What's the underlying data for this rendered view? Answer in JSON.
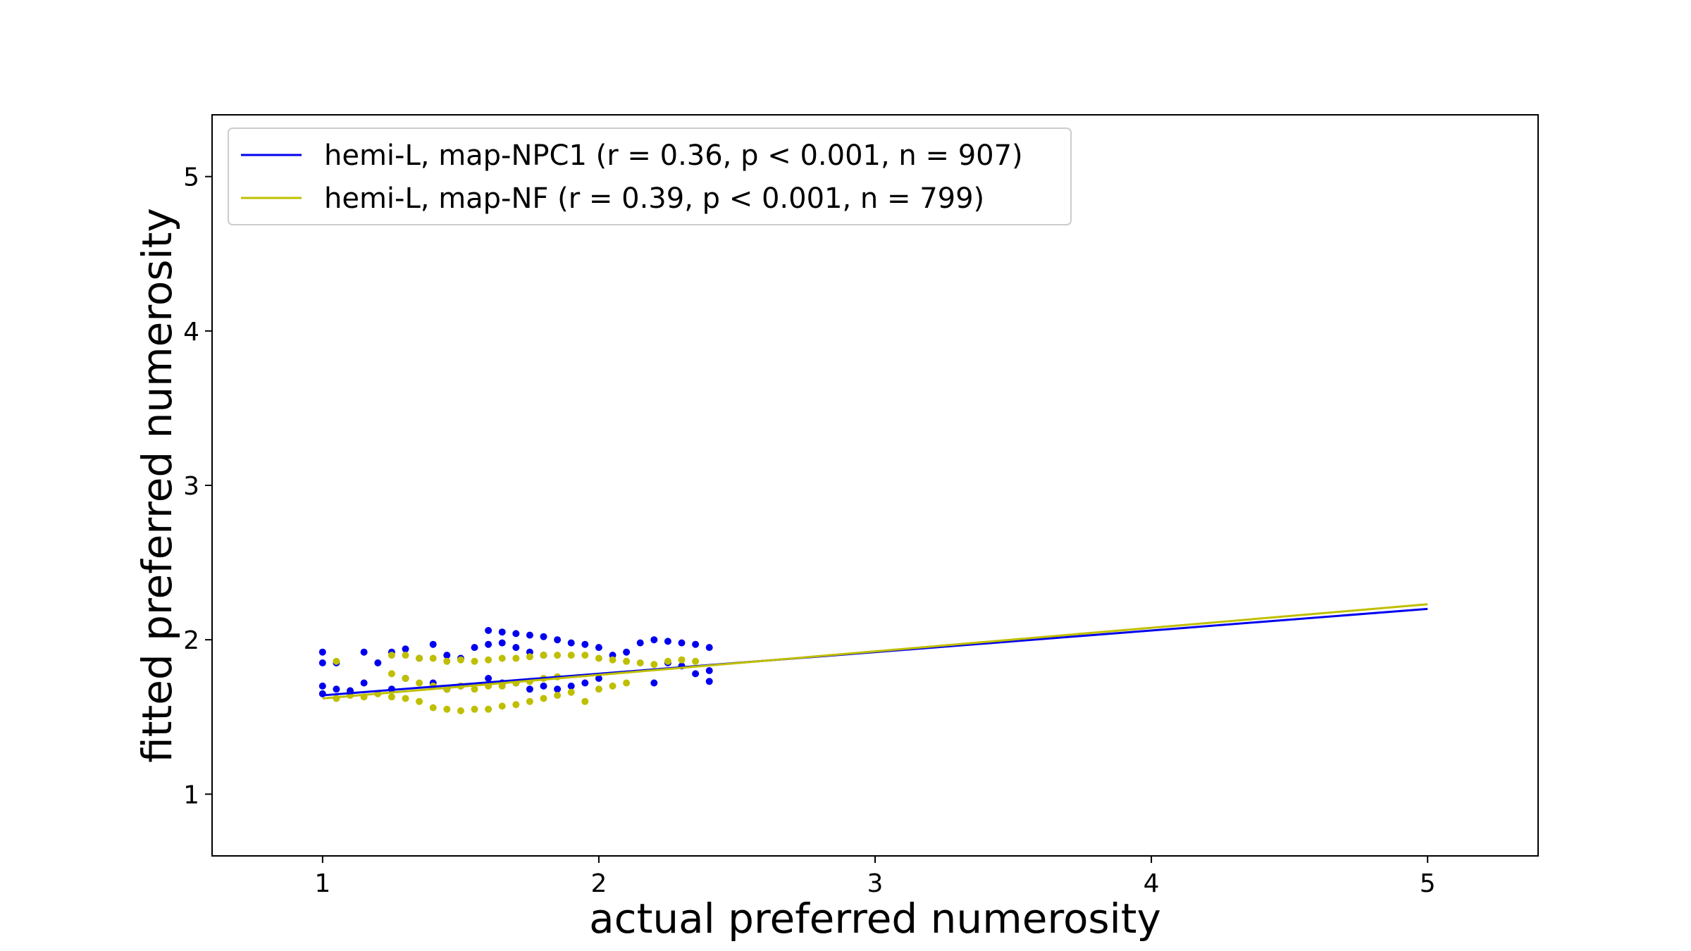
{
  "chart_data": {
    "type": "scatter",
    "title": "",
    "xlabel": "actual preferred numerosity",
    "ylabel": "fitted preferred numerosity",
    "xlim": [
      0.6,
      5.4
    ],
    "ylim": [
      0.6,
      5.4
    ],
    "xticks": [
      1,
      2,
      3,
      4,
      5
    ],
    "yticks": [
      1,
      2,
      3,
      4,
      5
    ],
    "xtick_labels": [
      "1",
      "2",
      "3",
      "4",
      "5"
    ],
    "ytick_labels": [
      "1",
      "2",
      "3",
      "4",
      "5"
    ],
    "grid": false,
    "legend_position": "top-left",
    "series": [
      {
        "name": "hemi-L, map-NPC1 (r = 0.36, p < 0.001, n = 907)",
        "color": "#0000ee",
        "fit_line": {
          "x": [
            1,
            5
          ],
          "y": [
            1.64,
            2.2
          ]
        },
        "x": [
          1.0,
          1.0,
          1.0,
          1.0,
          1.05,
          1.05,
          1.1,
          1.15,
          1.15,
          1.2,
          1.25,
          1.25,
          1.3,
          1.3,
          1.35,
          1.4,
          1.4,
          1.45,
          1.45,
          1.5,
          1.5,
          1.55,
          1.6,
          1.6,
          1.6,
          1.65,
          1.65,
          1.65,
          1.7,
          1.7,
          1.7,
          1.75,
          1.75,
          1.75,
          1.8,
          1.8,
          1.8,
          1.85,
          1.85,
          1.9,
          1.9,
          1.95,
          1.95,
          2.0,
          2.0,
          2.05,
          2.1,
          2.15,
          2.2,
          2.2,
          2.25,
          2.25,
          2.3,
          2.3,
          2.35,
          2.35,
          2.4,
          2.4,
          2.4
        ],
        "y": [
          1.92,
          1.85,
          1.7,
          1.65,
          1.85,
          1.68,
          1.67,
          1.92,
          1.72,
          1.85,
          1.92,
          1.68,
          1.94,
          1.75,
          1.88,
          1.97,
          1.72,
          1.9,
          1.68,
          1.88,
          1.7,
          1.95,
          2.06,
          1.97,
          1.75,
          2.05,
          1.98,
          1.72,
          2.04,
          1.95,
          1.72,
          2.03,
          1.92,
          1.68,
          2.02,
          1.9,
          1.7,
          2.0,
          1.68,
          1.98,
          1.7,
          1.97,
          1.72,
          1.95,
          1.75,
          1.9,
          1.92,
          1.98,
          2.0,
          1.72,
          1.99,
          1.85,
          1.98,
          1.83,
          1.97,
          1.78,
          1.95,
          1.8,
          1.73
        ]
      },
      {
        "name": "hemi-L, map-NF (r = 0.39, p < 0.001, n = 799)",
        "color": "#bfbf00",
        "fit_line": {
          "x": [
            1,
            5
          ],
          "y": [
            1.62,
            2.23
          ]
        },
        "x": [
          1.05,
          1.05,
          1.1,
          1.15,
          1.2,
          1.25,
          1.25,
          1.25,
          1.3,
          1.3,
          1.3,
          1.35,
          1.35,
          1.35,
          1.4,
          1.4,
          1.4,
          1.45,
          1.45,
          1.45,
          1.5,
          1.5,
          1.5,
          1.55,
          1.55,
          1.55,
          1.6,
          1.6,
          1.6,
          1.65,
          1.65,
          1.65,
          1.7,
          1.7,
          1.7,
          1.75,
          1.75,
          1.75,
          1.8,
          1.8,
          1.8,
          1.85,
          1.85,
          1.85,
          1.9,
          1.9,
          1.95,
          1.95,
          2.0,
          2.0,
          2.05,
          2.05,
          2.1,
          2.1,
          2.15,
          2.2,
          2.25,
          2.3,
          2.35
        ],
        "y": [
          1.86,
          1.62,
          1.64,
          1.63,
          1.65,
          1.9,
          1.78,
          1.63,
          1.9,
          1.75,
          1.62,
          1.88,
          1.72,
          1.6,
          1.88,
          1.7,
          1.56,
          1.86,
          1.68,
          1.55,
          1.87,
          1.7,
          1.54,
          1.86,
          1.68,
          1.55,
          1.87,
          1.7,
          1.55,
          1.88,
          1.7,
          1.57,
          1.88,
          1.72,
          1.58,
          1.89,
          1.73,
          1.6,
          1.9,
          1.75,
          1.62,
          1.9,
          1.76,
          1.64,
          1.9,
          1.66,
          1.9,
          1.6,
          1.88,
          1.68,
          1.87,
          1.7,
          1.86,
          1.72,
          1.85,
          1.84,
          1.86,
          1.87,
          1.86
        ]
      }
    ]
  }
}
